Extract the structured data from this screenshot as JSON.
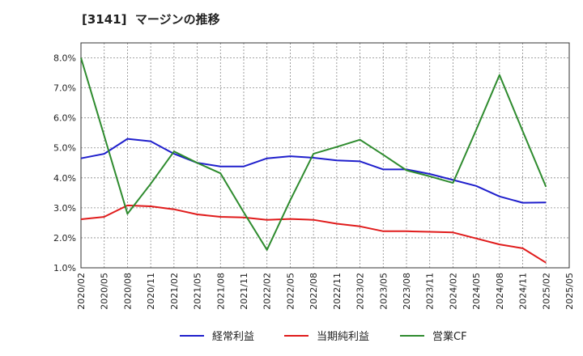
{
  "chart_data": {
    "type": "line",
    "title": "[3141]  マージンの推移",
    "xlabel": "",
    "ylabel": "",
    "x": [
      "2020/02",
      "2020/05",
      "2020/08",
      "2020/11",
      "2021/02",
      "2021/05",
      "2021/08",
      "2021/11",
      "2022/02",
      "2022/05",
      "2022/08",
      "2022/11",
      "2023/02",
      "2023/05",
      "2023/08",
      "2023/11",
      "2024/02",
      "2024/05",
      "2024/08",
      "2024/11",
      "2025/02",
      "2025/05"
    ],
    "x_tick_labels": [
      "2020/02",
      "2020/05",
      "2020/08",
      "2020/11",
      "2021/02",
      "2021/05",
      "2021/08",
      "2021/11",
      "2022/02",
      "2022/05",
      "2022/08",
      "2022/11",
      "2023/02",
      "2023/05",
      "2023/08",
      "2023/11",
      "2024/02",
      "2024/05",
      "2024/08",
      "2024/11",
      "2025/02",
      "2025/05"
    ],
    "ylim": [
      1.0,
      8.5
    ],
    "y_ticks": [
      1.0,
      2.0,
      3.0,
      4.0,
      5.0,
      6.0,
      7.0,
      8.0
    ],
    "y_tick_labels": [
      "1.0%",
      "2.0%",
      "3.0%",
      "4.0%",
      "5.0%",
      "6.0%",
      "7.0%",
      "8.0%"
    ],
    "grid": true,
    "legend_position": "bottom",
    "series": [
      {
        "name": "経常利益",
        "color": "#1f1fcc",
        "values": [
          4.65,
          4.8,
          5.3,
          5.22,
          4.8,
          4.5,
          4.38,
          4.38,
          4.65,
          4.72,
          4.67,
          4.58,
          4.55,
          4.28,
          4.28,
          4.13,
          3.93,
          3.73,
          3.38,
          3.17,
          3.18,
          null
        ]
      },
      {
        "name": "当期純利益",
        "color": "#e01b1b",
        "values": [
          2.62,
          2.7,
          3.08,
          3.05,
          2.95,
          2.78,
          2.7,
          2.68,
          2.6,
          2.63,
          2.6,
          2.47,
          2.38,
          2.22,
          2.22,
          2.2,
          2.18,
          1.98,
          1.78,
          1.65,
          1.17,
          null
        ]
      },
      {
        "name": "営業CF",
        "color": "#2e8b2e",
        "values": [
          8.0,
          5.4,
          2.8,
          3.8,
          4.88,
          4.5,
          4.15,
          2.85,
          1.6,
          3.25,
          4.8,
          5.03,
          5.27,
          4.77,
          4.25,
          4.05,
          3.83,
          5.6,
          7.43,
          5.55,
          3.7,
          null
        ]
      }
    ]
  }
}
